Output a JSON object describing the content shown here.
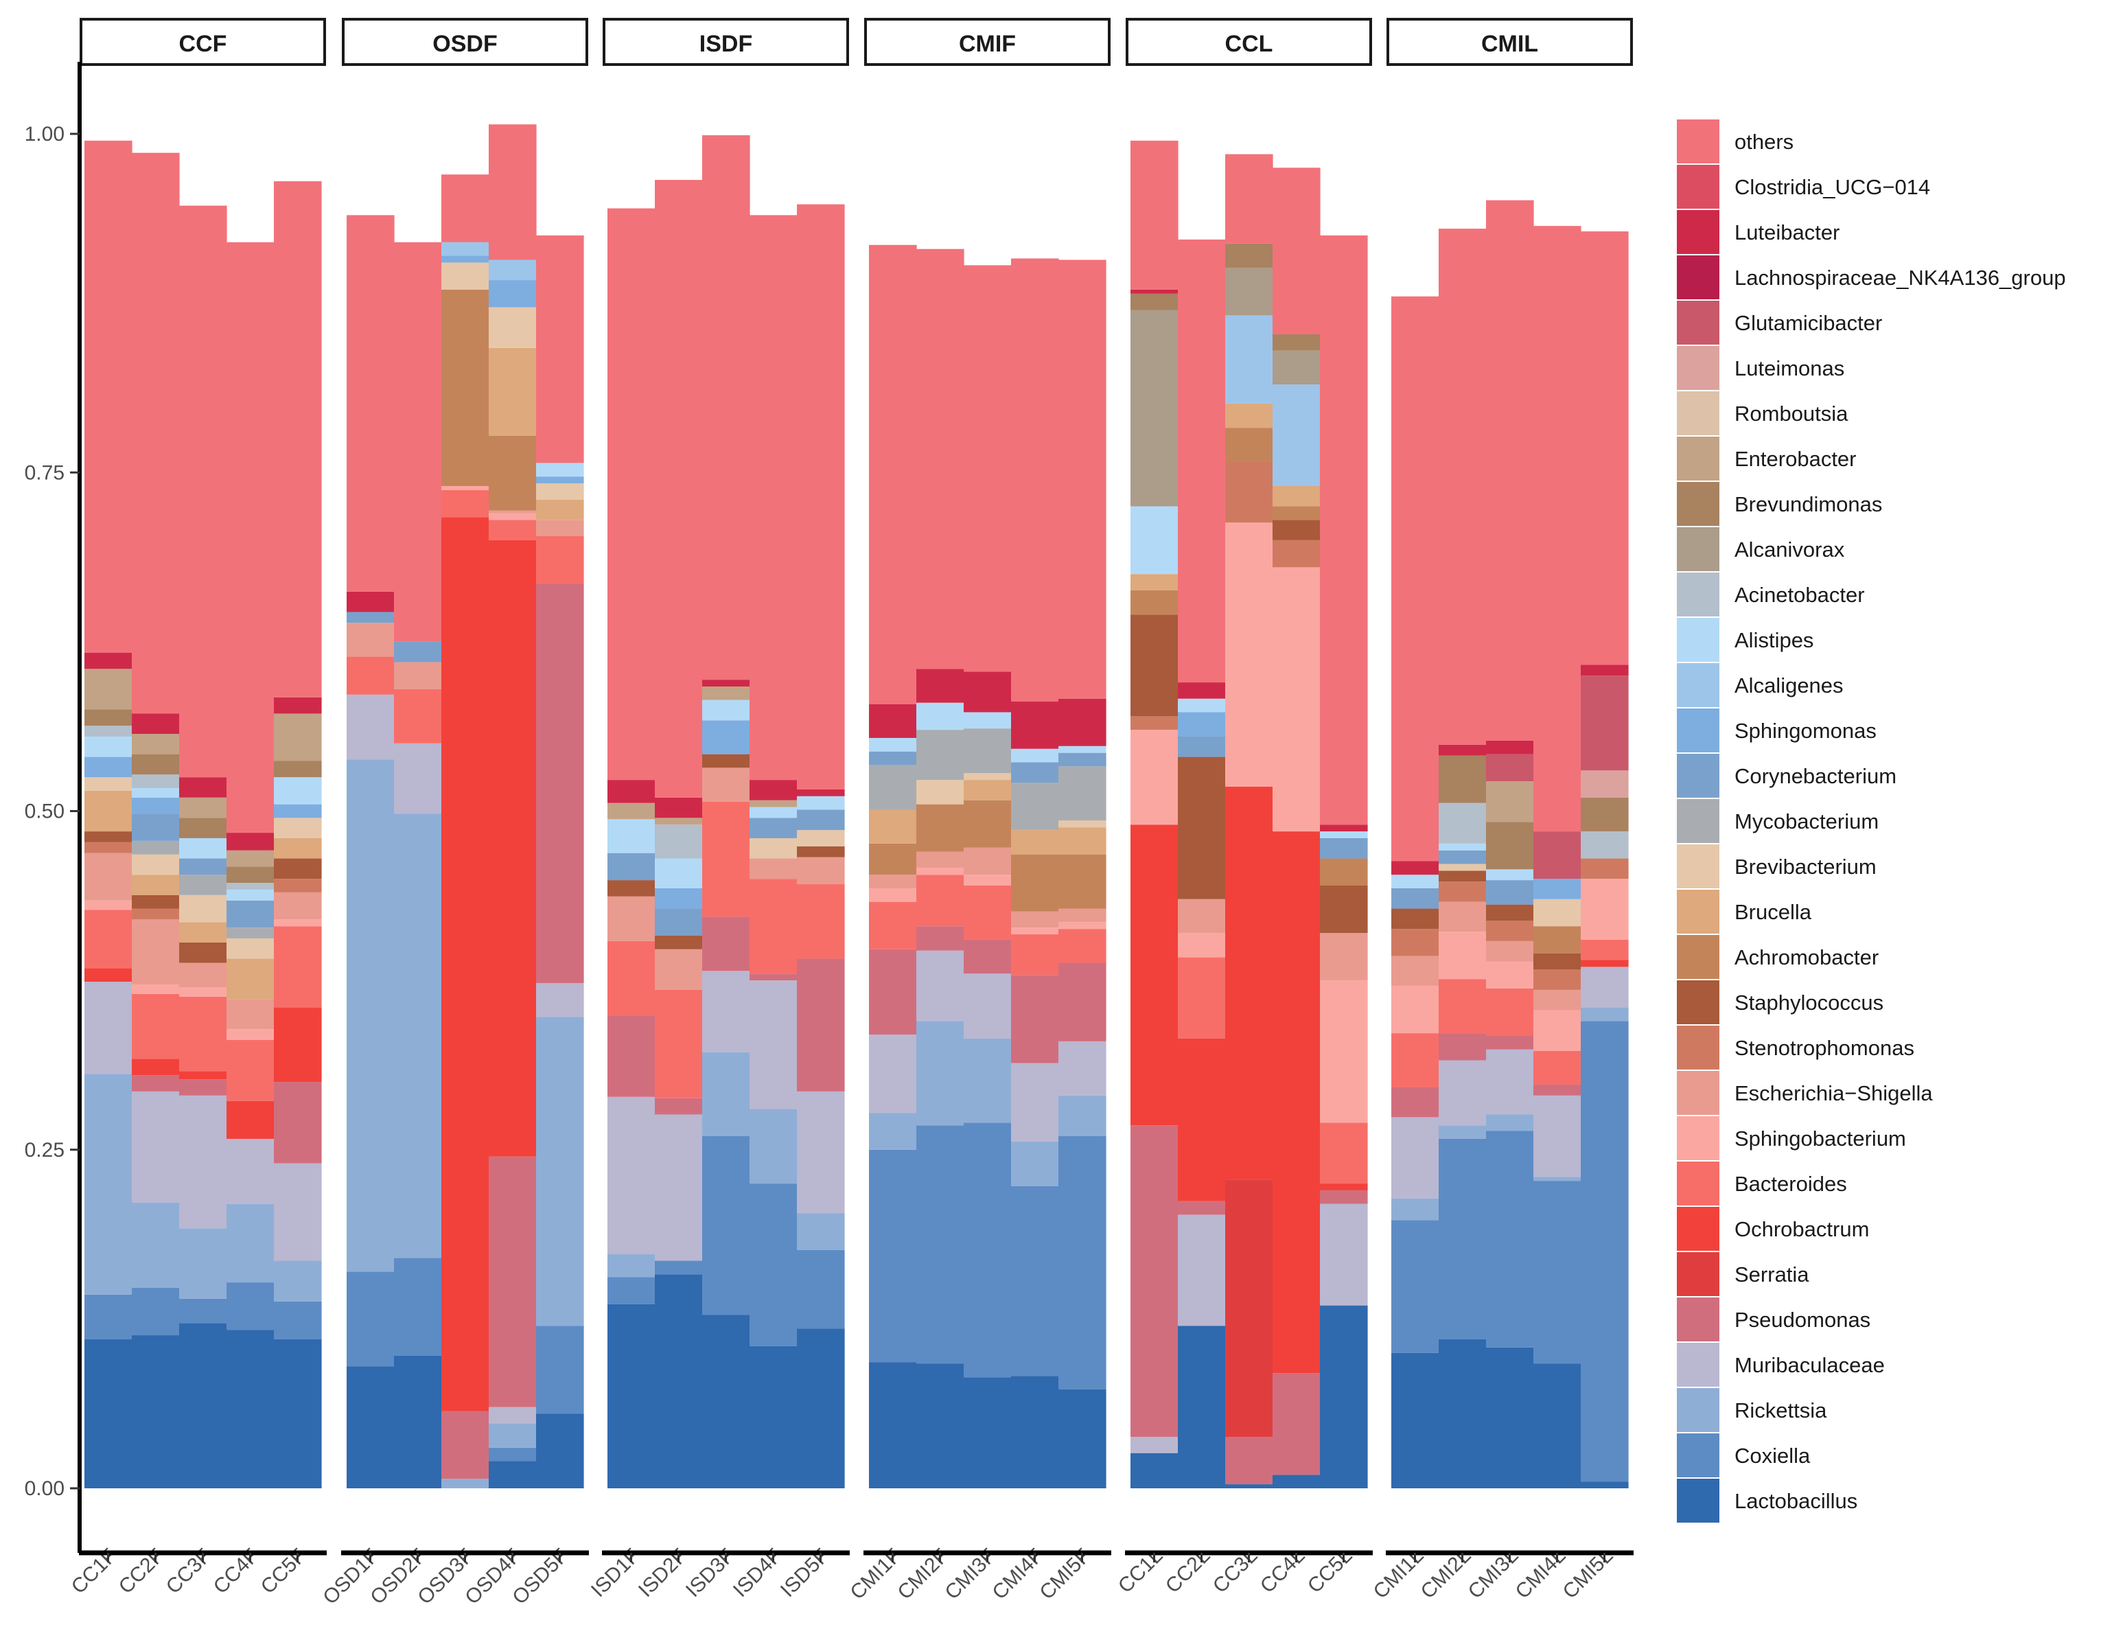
{
  "chart_data": {
    "type": "stacked-bar",
    "title": "",
    "xlabel": "",
    "ylabel": "",
    "ylim": [
      0,
      1
    ],
    "y_ticks": [
      "0.00",
      "0.25",
      "0.50",
      "0.75",
      "1.00"
    ],
    "legend_position": "right",
    "facets": [
      {
        "name": "CCF",
        "samples": [
          "CC1F",
          "CC2F",
          "CC3F",
          "CC4F",
          "CC5F"
        ]
      },
      {
        "name": "OSDF",
        "samples": [
          "OSD1F",
          "OSD2F",
          "OSD3F",
          "OSD4F",
          "OSD5F"
        ]
      },
      {
        "name": "ISDF",
        "samples": [
          "ISD1F",
          "ISD2F",
          "ISD3F",
          "ISD4F",
          "ISD5F"
        ]
      },
      {
        "name": "CMIF",
        "samples": [
          "CMI1F",
          "CMI2F",
          "CMI3F",
          "CMI4F",
          "CMI5F"
        ]
      },
      {
        "name": "CCL",
        "samples": [
          "CC1L",
          "CC2L",
          "CC3L",
          "CC4L",
          "CC5L"
        ]
      },
      {
        "name": "CMIL",
        "samples": [
          "CMI1L",
          "CMI2L",
          "CMI3L",
          "CMI4L",
          "CMI5L"
        ]
      }
    ],
    "series": [
      {
        "name": "Lactobacillus",
        "color": "#2f69ae",
        "values": [
          0.11,
          0.113,
          0.122,
          0.117,
          0.11,
          0.09,
          0.098,
          0.0,
          0.02,
          0.055,
          0.136,
          0.158,
          0.128,
          0.105,
          0.118,
          0.093,
          0.092,
          0.082,
          0.083,
          0.073,
          0.026,
          0.12,
          0.003,
          0.01,
          0.135,
          0.1,
          0.11,
          0.104,
          0.092,
          0.005
        ]
      },
      {
        "name": "Coxiella",
        "color": "#5d8cc4",
        "values": [
          0.033,
          0.035,
          0.018,
          0.035,
          0.028,
          0.07,
          0.072,
          0.0,
          0.01,
          0.065,
          0.02,
          0.01,
          0.132,
          0.12,
          0.058,
          0.157,
          0.176,
          0.188,
          0.14,
          0.187,
          0.0,
          0.0,
          0.0,
          0.0,
          0.0,
          0.098,
          0.148,
          0.16,
          0.135,
          0.34
        ]
      },
      {
        "name": "Rickettsia",
        "color": "#8faed6",
        "values": [
          0.163,
          0.063,
          0.052,
          0.058,
          0.03,
          0.378,
          0.328,
          0.007,
          0.018,
          0.228,
          0.017,
          0.0,
          0.062,
          0.055,
          0.027,
          0.027,
          0.077,
          0.062,
          0.033,
          0.03,
          0.0,
          0.0,
          0.0,
          0.0,
          0.0,
          0.016,
          0.01,
          0.012,
          0.003,
          0.01
        ]
      },
      {
        "name": "Muribaculaceae",
        "color": "#bab7d1",
        "values": [
          0.068,
          0.082,
          0.098,
          0.048,
          0.072,
          0.048,
          0.052,
          0.0,
          0.012,
          0.025,
          0.116,
          0.108,
          0.06,
          0.095,
          0.09,
          0.058,
          0.052,
          0.048,
          0.058,
          0.04,
          0.012,
          0.082,
          0.0,
          0.0,
          0.075,
          0.06,
          0.048,
          0.048,
          0.06,
          0.03
        ]
      },
      {
        "name": "Pseudomonas",
        "color": "#d16e7d",
        "values": [
          0.0,
          0.012,
          0.012,
          0.0,
          0.06,
          0.0,
          0.0,
          0.05,
          0.185,
          0.295,
          0.06,
          0.012,
          0.04,
          0.005,
          0.098,
          0.063,
          0.018,
          0.025,
          0.065,
          0.058,
          0.23,
          0.01,
          0.035,
          0.075,
          0.01,
          0.022,
          0.02,
          0.01,
          0.008,
          0.0
        ]
      },
      {
        "name": "Serratia",
        "color": "#e03e3e",
        "values": [
          0.0,
          0.0,
          0.0,
          0.0,
          0.0,
          0.0,
          0.0,
          0.0,
          0.0,
          0.0,
          0.0,
          0.0,
          0.0,
          0.0,
          0.0,
          0.0,
          0.0,
          0.0,
          0.0,
          0.0,
          0.0,
          0.0,
          0.19,
          0.0,
          0.0,
          0.0,
          0.0,
          0.0,
          0.0,
          0.0
        ]
      },
      {
        "name": "Ochrobactrum",
        "color": "#f2413a",
        "values": [
          0.01,
          0.012,
          0.006,
          0.028,
          0.055,
          0.0,
          0.0,
          0.66,
          0.455,
          0.0,
          0.0,
          0.0,
          0.0,
          0.0,
          0.0,
          0.0,
          0.0,
          0.0,
          0.0,
          0.0,
          0.222,
          0.12,
          0.29,
          0.4,
          0.005,
          0.0,
          0.0,
          0.0,
          0.0,
          0.005
        ]
      },
      {
        "name": "Bacteroides",
        "color": "#f76e69",
        "values": [
          0.043,
          0.048,
          0.055,
          0.045,
          0.06,
          0.028,
          0.04,
          0.02,
          0.015,
          0.035,
          0.055,
          0.08,
          0.085,
          0.07,
          0.055,
          0.035,
          0.038,
          0.04,
          0.03,
          0.025,
          0.0,
          0.06,
          0.0,
          0.0,
          0.045,
          0.04,
          0.04,
          0.035,
          0.025,
          0.015
        ]
      },
      {
        "name": "Sphingobacterium",
        "color": "#fba7a1",
        "values": [
          0.007,
          0.007,
          0.007,
          0.008,
          0.005,
          0.0,
          0.0,
          0.003,
          0.005,
          0.0,
          0.0,
          0.0,
          0.0,
          0.0,
          0.0,
          0.01,
          0.005,
          0.008,
          0.005,
          0.005,
          0.07,
          0.018,
          0.195,
          0.195,
          0.105,
          0.035,
          0.035,
          0.02,
          0.03,
          0.045
        ]
      },
      {
        "name": "Escherichia-Shigella",
        "color": "#e99b8f",
        "values": [
          0.035,
          0.048,
          0.018,
          0.022,
          0.02,
          0.025,
          0.02,
          0.0,
          0.002,
          0.012,
          0.033,
          0.03,
          0.025,
          0.015,
          0.02,
          0.01,
          0.012,
          0.02,
          0.012,
          0.01,
          0.0,
          0.025,
          0.0,
          0.0,
          0.035,
          0.022,
          0.022,
          0.015,
          0.015,
          0.0
        ]
      },
      {
        "name": "Stenotrophomonas",
        "color": "#cf7a60",
        "values": [
          0.008,
          0.008,
          0.0,
          0.0,
          0.01,
          0.0,
          0.0,
          0.0,
          0.0,
          0.0,
          0.0,
          0.0,
          0.0,
          0.0,
          0.0,
          0.0,
          0.0,
          0.0,
          0.0,
          0.0,
          0.01,
          0.0,
          0.045,
          0.02,
          0.0,
          0.02,
          0.015,
          0.015,
          0.015,
          0.015
        ]
      },
      {
        "name": "Staphylococcus",
        "color": "#a85a3a",
        "values": [
          0.008,
          0.01,
          0.015,
          0.0,
          0.015,
          0.0,
          0.0,
          0.0,
          0.0,
          0.0,
          0.012,
          0.01,
          0.01,
          0.0,
          0.008,
          0.0,
          0.0,
          0.0,
          0.0,
          0.0,
          0.075,
          0.105,
          0.0,
          0.015,
          0.035,
          0.015,
          0.008,
          0.012,
          0.012,
          0.0
        ]
      },
      {
        "name": "Achromobacter",
        "color": "#c48459",
        "values": [
          0.0,
          0.0,
          0.0,
          0.0,
          0.0,
          0.0,
          0.0,
          0.145,
          0.055,
          0.0,
          0.0,
          0.0,
          0.0,
          0.0,
          0.0,
          0.023,
          0.035,
          0.035,
          0.042,
          0.04,
          0.018,
          0.0,
          0.025,
          0.01,
          0.02,
          0.0,
          0.0,
          0.0,
          0.02,
          0.0
        ]
      },
      {
        "name": "Brucella",
        "color": "#dea97c",
        "values": [
          0.03,
          0.015,
          0.015,
          0.03,
          0.015,
          0.0,
          0.0,
          0.0,
          0.065,
          0.015,
          0.0,
          0.0,
          0.0,
          0.0,
          0.0,
          0.025,
          0.0,
          0.015,
          0.018,
          0.02,
          0.012,
          0.0,
          0.018,
          0.015,
          0.0,
          0.0,
          0.0,
          0.0,
          0.0,
          0.0
        ]
      },
      {
        "name": "Brevibacterium",
        "color": "#e6c7a9",
        "values": [
          0.01,
          0.015,
          0.02,
          0.015,
          0.015,
          0.0,
          0.0,
          0.02,
          0.03,
          0.012,
          0.0,
          0.0,
          0.0,
          0.015,
          0.012,
          0.0,
          0.018,
          0.005,
          0.0,
          0.005,
          0.0,
          0.0,
          0.0,
          0.0,
          0.0,
          0.0,
          0.005,
          0.0,
          0.02,
          0.0
        ]
      },
      {
        "name": "Mycobacterium",
        "color": "#a9adb1",
        "values": [
          0.0,
          0.01,
          0.015,
          0.008,
          0.0,
          0.0,
          0.0,
          0.0,
          0.0,
          0.0,
          0.0,
          0.0,
          0.0,
          0.0,
          0.0,
          0.033,
          0.037,
          0.033,
          0.035,
          0.04,
          0.0,
          0.0,
          0.0,
          0.0,
          0.0,
          0.0,
          0.0,
          0.0,
          0.0,
          0.0
        ]
      },
      {
        "name": "Corynebacterium",
        "color": "#7aa1cc",
        "values": [
          0.0,
          0.02,
          0.012,
          0.02,
          0.0,
          0.008,
          0.015,
          0.0,
          0.0,
          0.0,
          0.02,
          0.02,
          0.0,
          0.015,
          0.015,
          0.01,
          0.0,
          0.0,
          0.015,
          0.01,
          0.0,
          0.015,
          0.0,
          0.0,
          0.015,
          0.015,
          0.01,
          0.018,
          0.0,
          0.0
        ]
      },
      {
        "name": "Sphingomonas",
        "color": "#7eade0",
        "values": [
          0.015,
          0.012,
          0.0,
          0.0,
          0.01,
          0.0,
          0.0,
          0.005,
          0.02,
          0.005,
          0.0,
          0.015,
          0.025,
          0.0,
          0.0,
          0.0,
          0.0,
          0.0,
          0.0,
          0.0,
          0.0,
          0.018,
          0.0,
          0.0,
          0.0,
          0.0,
          0.0,
          0.0,
          0.015,
          0.0
        ]
      },
      {
        "name": "Alcaligenes",
        "color": "#9dc5ea",
        "values": [
          0.0,
          0.0,
          0.0,
          0.0,
          0.0,
          0.0,
          0.0,
          0.01,
          0.015,
          0.0,
          0.0,
          0.0,
          0.0,
          0.0,
          0.0,
          0.0,
          0.0,
          0.0,
          0.0,
          0.0,
          0.0,
          0.0,
          0.065,
          0.075,
          0.0,
          0.0,
          0.0,
          0.0,
          0.0,
          0.0
        ]
      },
      {
        "name": "Alistipes",
        "color": "#b2daf7",
        "values": [
          0.015,
          0.007,
          0.015,
          0.008,
          0.02,
          0.0,
          0.0,
          0.0,
          0.0,
          0.01,
          0.025,
          0.022,
          0.015,
          0.008,
          0.01,
          0.01,
          0.02,
          0.012,
          0.01,
          0.005,
          0.05,
          0.01,
          0.0,
          0.0,
          0.005,
          0.01,
          0.005,
          0.008,
          0.0,
          0.0
        ]
      },
      {
        "name": "Acinetobacter",
        "color": "#b3bfcb",
        "values": [
          0.008,
          0.01,
          0.0,
          0.005,
          0.0,
          0.0,
          0.0,
          0.0,
          0.0,
          0.0,
          0.0,
          0.025,
          0.0,
          0.0,
          0.0,
          0.0,
          0.0,
          0.0,
          0.0,
          0.0,
          0.0,
          0.0,
          0.0,
          0.0,
          0.0,
          0.0,
          0.03,
          0.0,
          0.0,
          0.02
        ]
      },
      {
        "name": "Alcanivorax",
        "color": "#ac9c8a",
        "values": [
          0.0,
          0.0,
          0.0,
          0.0,
          0.0,
          0.0,
          0.0,
          0.0,
          0.0,
          0.0,
          0.0,
          0.0,
          0.0,
          0.0,
          0.0,
          0.0,
          0.0,
          0.0,
          0.0,
          0.0,
          0.145,
          0.0,
          0.035,
          0.025,
          0.0,
          0.0,
          0.0,
          0.0,
          0.0,
          0.0
        ]
      },
      {
        "name": "Brevundimonas",
        "color": "#a98260",
        "values": [
          0.012,
          0.015,
          0.015,
          0.012,
          0.012,
          0.0,
          0.0,
          0.0,
          0.0,
          0.0,
          0.0,
          0.0,
          0.0,
          0.0,
          0.0,
          0.0,
          0.0,
          0.0,
          0.0,
          0.0,
          0.012,
          0.0,
          0.018,
          0.012,
          0.0,
          0.0,
          0.035,
          0.035,
          0.0,
          0.025
        ]
      },
      {
        "name": "Enterobacter",
        "color": "#c3a386",
        "values": [
          0.03,
          0.015,
          0.015,
          0.012,
          0.035,
          0.0,
          0.0,
          0.0,
          0.0,
          0.0,
          0.012,
          0.005,
          0.01,
          0.005,
          0.0,
          0.0,
          0.0,
          0.0,
          0.0,
          0.0,
          0.0,
          0.0,
          0.0,
          0.0,
          0.0,
          0.0,
          0.0,
          0.03,
          0.0,
          0.0
        ]
      },
      {
        "name": "Romboutsia",
        "color": "#ddc2a9",
        "values": [
          0.0,
          0.0,
          0.0,
          0.0,
          0.0,
          0.0,
          0.0,
          0.0,
          0.0,
          0.0,
          0.0,
          0.0,
          0.0,
          0.0,
          0.0,
          0.0,
          0.0,
          0.0,
          0.0,
          0.0,
          0.0,
          0.0,
          0.0,
          0.0,
          0.0,
          0.0,
          0.0,
          0.0,
          0.0,
          0.0
        ]
      },
      {
        "name": "Luteimonas",
        "color": "#dca29d",
        "values": [
          0.0,
          0.0,
          0.0,
          0.0,
          0.0,
          0.0,
          0.0,
          0.0,
          0.0,
          0.0,
          0.0,
          0.0,
          0.0,
          0.0,
          0.0,
          0.0,
          0.0,
          0.0,
          0.0,
          0.0,
          0.0,
          0.0,
          0.0,
          0.0,
          0.0,
          0.0,
          0.0,
          0.0,
          0.0,
          0.02
        ]
      },
      {
        "name": "Glutamicibacter",
        "color": "#c9586a",
        "values": [
          0.0,
          0.0,
          0.0,
          0.0,
          0.0,
          0.0,
          0.0,
          0.0,
          0.0,
          0.0,
          0.0,
          0.0,
          0.0,
          0.0,
          0.0,
          0.0,
          0.0,
          0.0,
          0.0,
          0.0,
          0.0,
          0.0,
          0.0,
          0.0,
          0.0,
          0.0,
          0.0,
          0.02,
          0.035,
          0.07
        ]
      },
      {
        "name": "Lachnospiraceae_NK4A136_group",
        "color": "#b81e4b",
        "values": [
          0.0,
          0.0,
          0.0,
          0.0,
          0.0,
          0.0,
          0.0,
          0.0,
          0.0,
          0.0,
          0.0,
          0.0,
          0.0,
          0.0,
          0.0,
          0.0,
          0.0,
          0.0,
          0.0,
          0.0,
          0.0,
          0.0,
          0.0,
          0.0,
          0.0,
          0.0,
          0.0,
          0.0,
          0.0,
          0.0
        ]
      },
      {
        "name": "Luteibacter",
        "color": "#cf2949",
        "values": [
          0.012,
          0.015,
          0.015,
          0.013,
          0.012,
          0.015,
          0.0,
          0.0,
          0.0,
          0.0,
          0.017,
          0.015,
          0.005,
          0.015,
          0.005,
          0.025,
          0.025,
          0.03,
          0.035,
          0.035,
          0.003,
          0.012,
          0.0,
          0.0,
          0.005,
          0.01,
          0.008,
          0.01,
          0.0,
          0.008
        ]
      },
      {
        "name": "Clostridia_UCG-014",
        "color": "#dd4d62",
        "values": [
          0.0,
          0.0,
          0.0,
          0.0,
          0.0,
          0.0,
          0.0,
          0.0,
          0.0,
          0.0,
          0.0,
          0.0,
          0.0,
          0.0,
          0.0,
          0.0,
          0.0,
          0.0,
          0.0,
          0.0,
          0.0,
          0.0,
          0.0,
          0.0,
          0.0,
          0.0,
          0.0,
          0.0,
          0.0,
          0.0
        ]
      },
      {
        "name": "others",
        "color": "#f2727a",
        "values": [
          0.378,
          0.414,
          0.422,
          0.436,
          0.381,
          0.278,
          0.295,
          0.05,
          0.1,
          0.168,
          0.422,
          0.456,
          0.402,
          0.417,
          0.432,
          0.339,
          0.31,
          0.3,
          0.327,
          0.324,
          0.11,
          0.327,
          0.066,
          0.123,
          0.435,
          0.417,
          0.381,
          0.399,
          0.447,
          0.32
        ]
      }
    ]
  }
}
